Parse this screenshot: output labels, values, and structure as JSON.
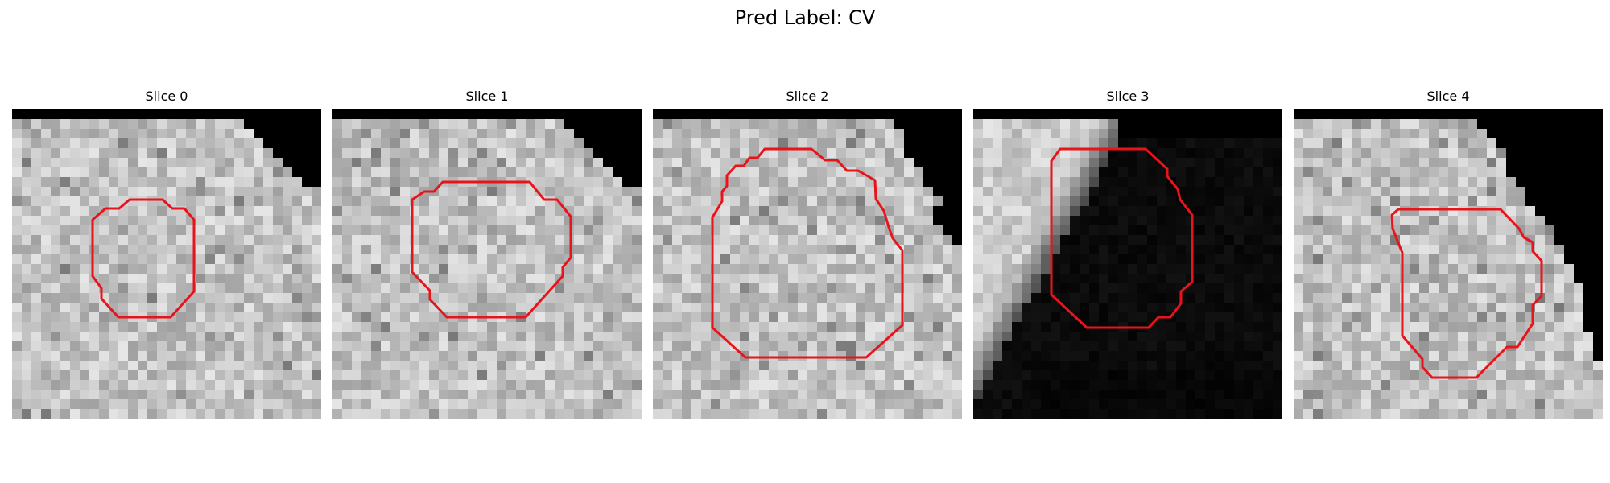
{
  "figure": {
    "title": "Pred Label: CV",
    "contour_color": "#e8141c"
  },
  "panels": [
    {
      "title": "Slice 0",
      "seed": 11,
      "blackout": "stair-small",
      "darkTissue": false
    },
    {
      "title": "Slice 1",
      "seed": 23,
      "blackout": "stair-small",
      "darkTissue": false
    },
    {
      "title": "Slice 2",
      "seed": 37,
      "blackout": "stair-medium",
      "darkTissue": false
    },
    {
      "title": "Slice 3",
      "seed": 41,
      "blackout": "large-dark",
      "darkTissue": true
    },
    {
      "title": "Slice 4",
      "seed": 59,
      "blackout": "stair-large",
      "darkTissue": false
    }
  ]
}
